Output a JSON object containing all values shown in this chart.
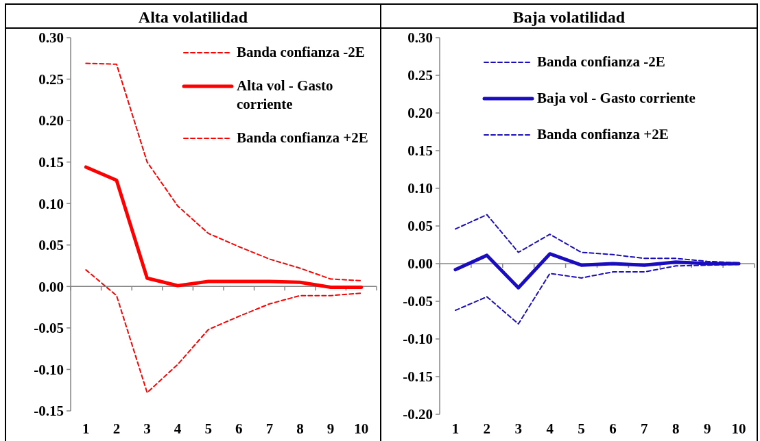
{
  "chart_data": [
    {
      "type": "line",
      "title": "Alta volatilidad",
      "categories": [
        "1",
        "2",
        "3",
        "4",
        "5",
        "6",
        "7",
        "8",
        "9",
        "10"
      ],
      "ylim": [
        -0.15,
        0.3
      ],
      "yticks": [
        {
          "value": -0.15,
          "label": "-0.15"
        },
        {
          "value": -0.1,
          "label": "-0.10"
        },
        {
          "value": -0.05,
          "label": "-0.05"
        },
        {
          "value": 0,
          "label": "0.00"
        },
        {
          "value": 0.05,
          "label": "0.05"
        },
        {
          "value": 0.1,
          "label": "0.10"
        },
        {
          "value": 0.15,
          "label": "0.15"
        },
        {
          "value": 0.2,
          "label": "0.20"
        },
        {
          "value": 0.25,
          "label": "0.25"
        },
        {
          "value": 0.3,
          "label": "0.30"
        }
      ],
      "legend": "top right",
      "series": [
        {
          "name": "Banda confianza -2E",
          "color": "#ff0000",
          "line_style": "dashed",
          "values": [
            0.269,
            0.268,
            0.15,
            0.097,
            0.064,
            0.048,
            0.033,
            0.022,
            0.009,
            0.007
          ]
        },
        {
          "name": "Alta vol - Gasto corriente",
          "color": "#ff0000",
          "line_style": "solid",
          "values": [
            0.144,
            0.128,
            0.01,
            0.001,
            0.006,
            0.006,
            0.006,
            0.005,
            -0.001,
            -0.001
          ]
        },
        {
          "name": "Banda confianza +2E",
          "color": "#ff0000",
          "line_style": "dashed",
          "values": [
            0.02,
            -0.011,
            -0.128,
            -0.094,
            -0.052,
            -0.036,
            -0.021,
            -0.011,
            -0.011,
            -0.008
          ]
        }
      ]
    },
    {
      "type": "line",
      "title": "Baja volatilidad",
      "categories": [
        "1",
        "2",
        "3",
        "4",
        "5",
        "6",
        "7",
        "8",
        "9",
        "10"
      ],
      "ylim": [
        -0.2,
        0.3
      ],
      "yticks": [
        {
          "value": -0.2,
          "label": "-0.20"
        },
        {
          "value": -0.15,
          "label": "-0.15"
        },
        {
          "value": -0.1,
          "label": "-0.10"
        },
        {
          "value": -0.05,
          "label": "-0.05"
        },
        {
          "value": 0,
          "label": "0.00"
        },
        {
          "value": 0.05,
          "label": "0.05"
        },
        {
          "value": 0.1,
          "label": "0.10"
        },
        {
          "value": 0.15,
          "label": "0.15"
        },
        {
          "value": 0.2,
          "label": "0.20"
        },
        {
          "value": 0.25,
          "label": "0.25"
        },
        {
          "value": 0.3,
          "label": "0.30"
        }
      ],
      "legend": "top",
      "series": [
        {
          "name": "Banda confianza -2E",
          "color": "#1a0dbf",
          "line_style": "dashed",
          "values": [
            0.046,
            0.065,
            0.015,
            0.039,
            0.015,
            0.012,
            0.007,
            0.007,
            0.003,
            0.001
          ]
        },
        {
          "name": "Baja vol - Gasto corriente",
          "color": "#1a0dbf",
          "line_style": "solid",
          "values": [
            -0.008,
            0.011,
            -0.032,
            0.013,
            -0.002,
            0.0,
            -0.002,
            0.002,
            0.0,
            0.0
          ]
        },
        {
          "name": "Banda confianza +2E",
          "color": "#1a0dbf",
          "line_style": "dashed",
          "values": [
            -0.062,
            -0.044,
            -0.08,
            -0.013,
            -0.019,
            -0.011,
            -0.011,
            -0.003,
            -0.002,
            -0.001
          ]
        }
      ]
    }
  ]
}
